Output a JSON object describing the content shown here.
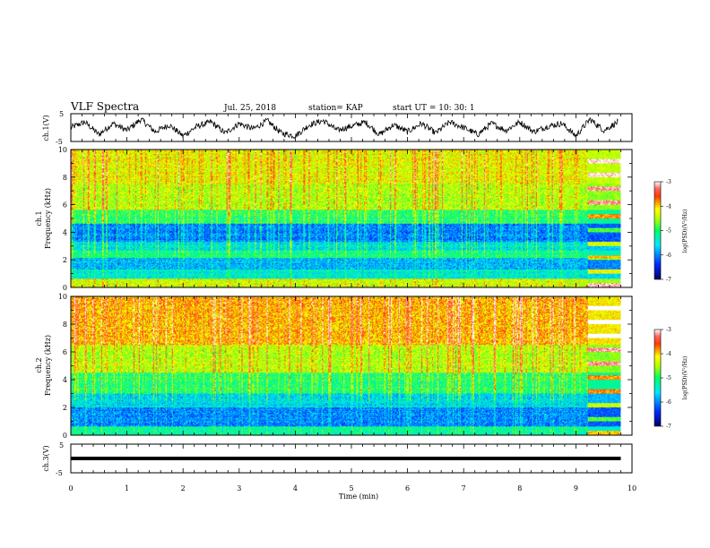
{
  "header": {
    "title": "VLF Spectra",
    "date": "Jul. 25, 2018",
    "station": "station= KAP",
    "start": "start UT =  10: 30: 1"
  },
  "colors": {
    "spectrum": [
      "#0000c8",
      "#0050ff",
      "#00e6e6",
      "#00ff80",
      "#b4ff00",
      "#ffff00",
      "#ff8000",
      "#ff0000",
      "#ffffff"
    ],
    "waveform": "#000000",
    "background": "#ffffff"
  },
  "chart_data": [
    {
      "type": "line",
      "ylabel": "ch.1(V)",
      "ylim": [
        -5,
        5
      ],
      "yticks": [
        "5",
        "-5"
      ],
      "xlim": [
        0,
        10
      ],
      "x_unit": "min",
      "series": [
        {
          "x": [
            0,
            0.25,
            0.5,
            0.75,
            1,
            1.25,
            1.5,
            1.75,
            2,
            2.25,
            2.5,
            2.75,
            3,
            3.25,
            3.5,
            3.75,
            4,
            4.25,
            4.5,
            4.75,
            5,
            5.25,
            5.5,
            5.75,
            6,
            6.25,
            6.5,
            6.75,
            7,
            7.25,
            7.5,
            7.75,
            8,
            8.25,
            8.5,
            8.75,
            9,
            9.25,
            9.5,
            9.75
          ],
          "values": [
            0,
            2,
            -2.5,
            1.5,
            -1,
            3,
            -1.5,
            1,
            -3,
            0.5,
            2,
            -2,
            1.5,
            -0.5,
            2.5,
            -2,
            -3,
            1,
            2.5,
            -1,
            0.5,
            2,
            -2.5,
            1,
            -1.5,
            1.5,
            -2,
            2,
            0,
            -2.5,
            1.5,
            -1,
            2,
            -1.5,
            0.5,
            1.5,
            -3,
            3,
            -1,
            2
          ]
        }
      ]
    },
    {
      "type": "heatmap",
      "ylabel": "ch.1",
      "ylabel2": "Frequency (kHz)",
      "xlim": [
        0,
        10
      ],
      "ylim": [
        0,
        10
      ],
      "yticks": [
        "0",
        "2",
        "4",
        "6",
        "8",
        "10"
      ],
      "colorbar": {
        "label": "log(PSD)(V²/Hz)",
        "range": [
          -7,
          -3
        ],
        "ticks": [
          "-3",
          "-4",
          "-5",
          "-6",
          "-7"
        ]
      },
      "bands_khz": [
        {
          "from": 0.0,
          "to": 0.6,
          "level": -4.3
        },
        {
          "from": 0.6,
          "to": 1.3,
          "level": -5.4
        },
        {
          "from": 1.3,
          "to": 2.1,
          "level": -5.8
        },
        {
          "from": 2.1,
          "to": 2.7,
          "level": -5.1
        },
        {
          "from": 2.7,
          "to": 3.3,
          "level": -5.5
        },
        {
          "from": 3.3,
          "to": 4.6,
          "level": -6.0
        },
        {
          "from": 4.6,
          "to": 5.6,
          "level": -5.0
        },
        {
          "from": 5.6,
          "to": 7.5,
          "level": -4.4
        },
        {
          "from": 7.5,
          "to": 10.0,
          "level": -4.2
        }
      ],
      "tail_start_min": 9.2
    },
    {
      "type": "heatmap",
      "ylabel": "ch.2",
      "ylabel2": "Frequency (kHz)",
      "xlim": [
        0,
        10
      ],
      "ylim": [
        0,
        10
      ],
      "yticks": [
        "0",
        "2",
        "4",
        "6",
        "8",
        "10"
      ],
      "colorbar": {
        "label": "log(PSD)(V²/Hz)",
        "range": [
          -7,
          -3
        ],
        "ticks": [
          "-3",
          "-4",
          "-5",
          "-6",
          "-7"
        ]
      },
      "bands_khz": [
        {
          "from": 0.0,
          "to": 0.6,
          "level": -5.2
        },
        {
          "from": 0.6,
          "to": 2.0,
          "level": -6.0
        },
        {
          "from": 2.0,
          "to": 3.0,
          "level": -5.6
        },
        {
          "from": 3.0,
          "to": 4.5,
          "level": -5.0
        },
        {
          "from": 4.5,
          "to": 6.5,
          "level": -4.4
        },
        {
          "from": 6.5,
          "to": 10.0,
          "level": -3.9
        }
      ],
      "tail_start_min": 9.2
    },
    {
      "type": "line",
      "ylabel": "ch.3(V)",
      "xlabel": "Time (min)",
      "ylim": [
        -5,
        5
      ],
      "yticks": [
        "5",
        "-5"
      ],
      "xlim": [
        0,
        10
      ],
      "xticks": [
        "0",
        "1",
        "2",
        "3",
        "4",
        "5",
        "6",
        "7",
        "8",
        "9",
        "10"
      ],
      "series": [
        {
          "x": [
            0,
            9.8
          ],
          "values": [
            0,
            0
          ]
        }
      ]
    }
  ]
}
